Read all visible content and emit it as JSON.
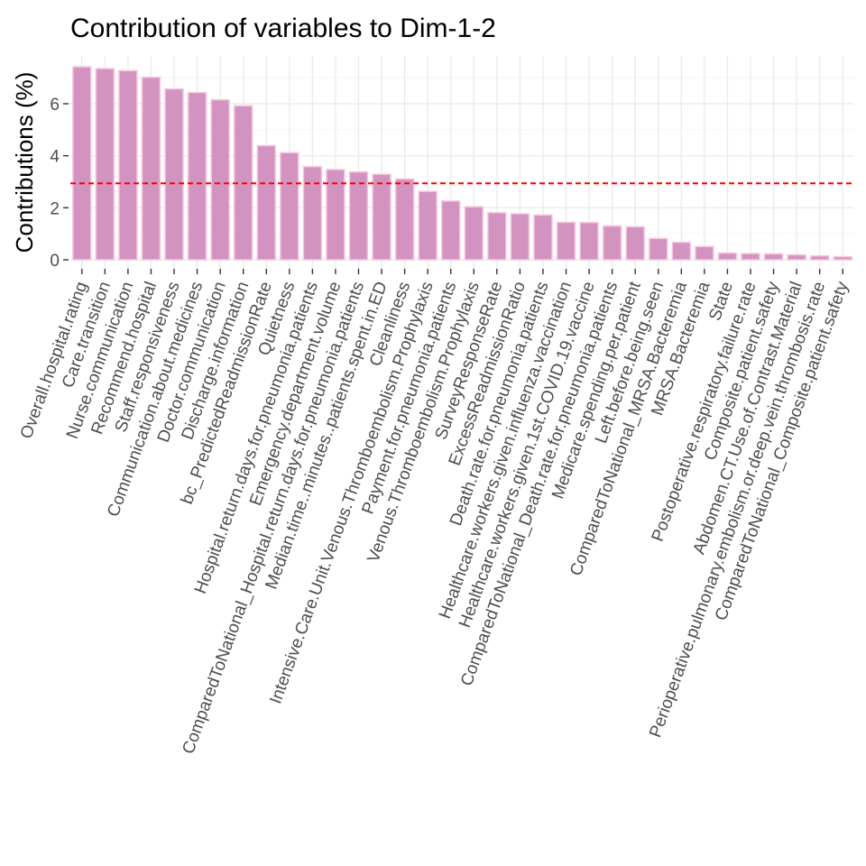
{
  "chart_data": {
    "type": "bar",
    "title": "Contribution of variables to Dim-1-2",
    "xlabel": "",
    "ylabel": "Contributions (%)",
    "ylim": [
      0,
      7.6
    ],
    "yticks": [
      0,
      2,
      4,
      6
    ],
    "grid": true,
    "reference_line": 2.94,
    "colors": {
      "bar_fill": "#d393c0",
      "bar_outline": "#f7c5de",
      "reference_line": "#ff0000",
      "grid_major": "#ebebeb",
      "grid_minor": "#f5f5f5"
    },
    "categories": [
      "Overall.hospital.rating",
      "Care.transition",
      "Nurse.communication",
      "Recommend.hospital",
      "Staff.responsiveness",
      "Communication.about.medicines",
      "Doctor.communication",
      "Discharge.information",
      "bc_PredictedReadmissionRate",
      "Quietness",
      "Hospital.return.days.for.pneumonia.patients",
      "Emergency.department.volume",
      "ComparedToNational_Hospital.return.days.for.pneumonia.patients",
      "Median.time..minutes..patients.spent.in.ED",
      "Cleanliness",
      "Intensive.Care.Unit.Venous.Thromboembolism.Prophylaxis",
      "Payment.for.pneumonia.patients",
      "Venous.Thromboembolism.Prophylaxis",
      "SurveyResponseRate",
      "ExcessReadmissionRatio",
      "Death.rate.for.pneumonia.patients",
      "Healthcare.workers.given.influenza.vaccination",
      "Healthcare.workers.given.1st.COVID.19.vaccine",
      "ComparedToNational_Death.rate.for.pneumonia.patients",
      "Medicare.spending.per.patient",
      "Left.before.being.seen",
      "ComparedToNational_MRSA.Bacteremia",
      "MRSA.Bacteremia",
      "State",
      "Postoperative.respiratory.failure.rate",
      "Composite.patient.safety",
      "Abdomen.CT.Use.of.Contrast.Material",
      "Perioperative.pulmonary.embolism.or.deep.vein.thrombosis.rate",
      "ComparedToNational_Composite.patient.safety"
    ],
    "values": [
      7.42,
      7.35,
      7.27,
      7.02,
      6.57,
      6.43,
      6.15,
      5.92,
      4.39,
      4.12,
      3.58,
      3.47,
      3.38,
      3.29,
      3.11,
      2.63,
      2.26,
      2.04,
      1.81,
      1.77,
      1.72,
      1.44,
      1.43,
      1.3,
      1.27,
      0.82,
      0.67,
      0.51,
      0.26,
      0.24,
      0.23,
      0.19,
      0.15,
      0.12
    ]
  }
}
